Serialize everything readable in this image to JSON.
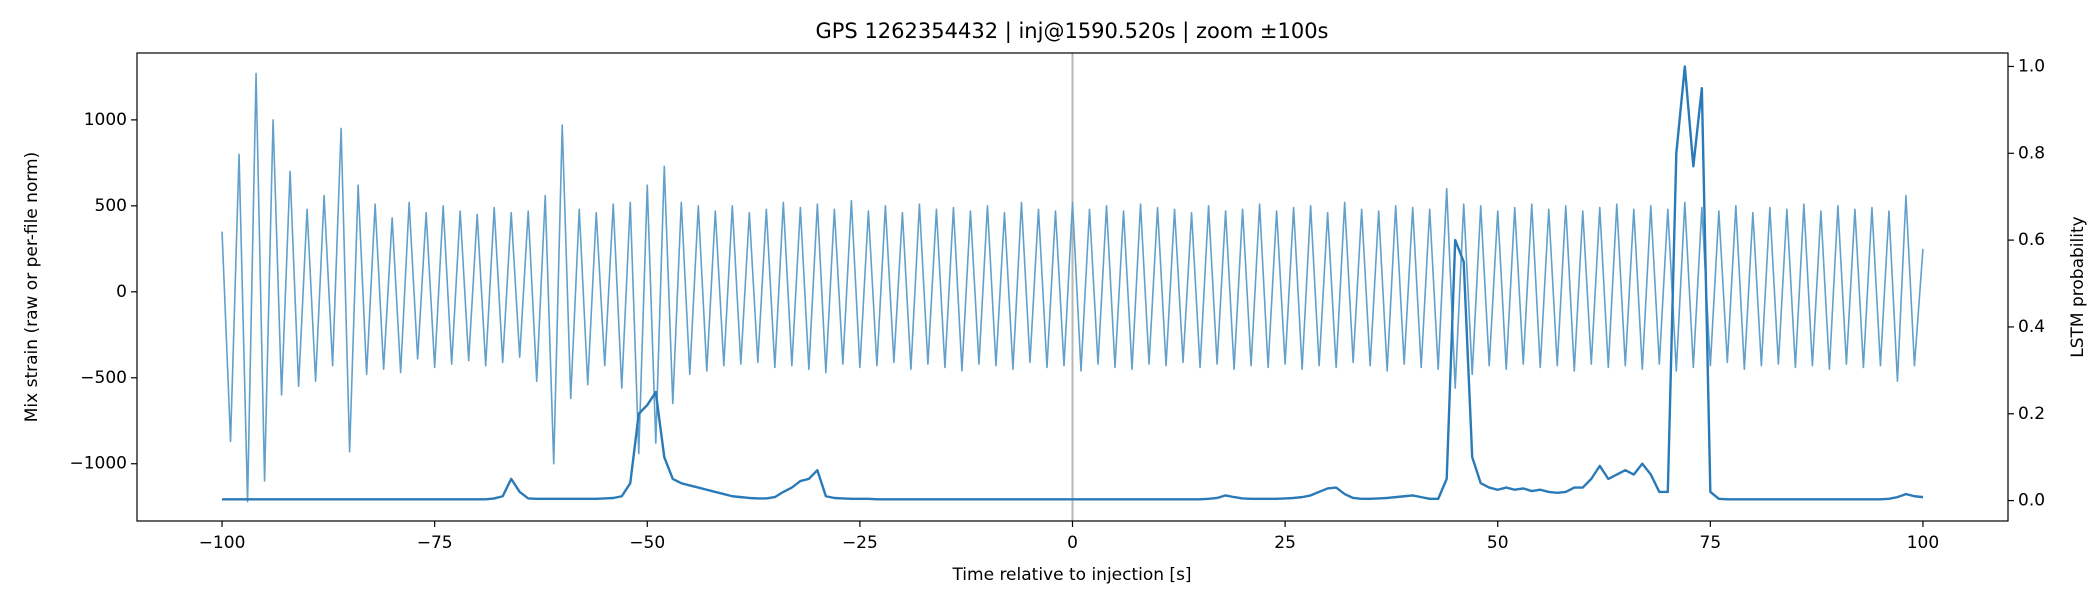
{
  "chart_data": {
    "type": "line",
    "title": "GPS 1262354432 | inj@1590.520s | zoom ±100s",
    "xlabel": "Time relative to injection [s]",
    "ylabel": "Mix strain (raw or per-file norm)",
    "y2label": "LSTM probability",
    "x": [
      -100,
      -99,
      -98,
      -97,
      -96,
      -95,
      -94,
      -93,
      -92,
      -91,
      -90,
      -89,
      -88,
      -87,
      -86,
      -85,
      -84,
      -83,
      -82,
      -81,
      -80,
      -79,
      -78,
      -77,
      -76,
      -75,
      -74,
      -73,
      -72,
      -71,
      -70,
      -69,
      -68,
      -67,
      -66,
      -65,
      -64,
      -63,
      -62,
      -61,
      -60,
      -59,
      -58,
      -57,
      -56,
      -55,
      -54,
      -53,
      -52,
      -51,
      -50,
      -49,
      -48,
      -47,
      -46,
      -45,
      -44,
      -43,
      -42,
      -41,
      -40,
      -39,
      -38,
      -37,
      -36,
      -35,
      -34,
      -33,
      -32,
      -31,
      -30,
      -29,
      -28,
      -27,
      -26,
      -25,
      -24,
      -23,
      -22,
      -21,
      -20,
      -19,
      -18,
      -17,
      -16,
      -15,
      -14,
      -13,
      -12,
      -11,
      -10,
      -9,
      -8,
      -7,
      -6,
      -5,
      -4,
      -3,
      -2,
      -1,
      0,
      1,
      2,
      3,
      4,
      5,
      6,
      7,
      8,
      9,
      10,
      11,
      12,
      13,
      14,
      15,
      16,
      17,
      18,
      19,
      20,
      21,
      22,
      23,
      24,
      25,
      26,
      27,
      28,
      29,
      30,
      31,
      32,
      33,
      34,
      35,
      36,
      37,
      38,
      39,
      40,
      41,
      42,
      43,
      44,
      45,
      46,
      47,
      48,
      49,
      50,
      51,
      52,
      53,
      54,
      55,
      56,
      57,
      58,
      59,
      60,
      61,
      62,
      63,
      64,
      65,
      66,
      67,
      68,
      69,
      70,
      71,
      72,
      73,
      74,
      75,
      76,
      77,
      78,
      79,
      80,
      81,
      82,
      83,
      84,
      85,
      86,
      87,
      88,
      89,
      90,
      91,
      92,
      93,
      94,
      95,
      96,
      97,
      98,
      99,
      100
    ],
    "series": [
      {
        "name": "Mix strain",
        "color": "#62a0cb",
        "axis": "y",
        "values": [
          350,
          -870,
          800,
          -1220,
          1270,
          -1100,
          1000,
          -600,
          700,
          -550,
          480,
          -520,
          560,
          -430,
          950,
          -930,
          620,
          -480,
          510,
          -450,
          430,
          -470,
          520,
          -390,
          460,
          -440,
          500,
          -420,
          470,
          -400,
          450,
          -430,
          490,
          -410,
          460,
          -380,
          470,
          -520,
          560,
          -1000,
          970,
          -620,
          480,
          -540,
          460,
          -430,
          510,
          -560,
          520,
          -940,
          620,
          -880,
          730,
          -650,
          520,
          -480,
          500,
          -460,
          470,
          -430,
          500,
          -420,
          460,
          -410,
          480,
          -440,
          520,
          -430,
          490,
          -450,
          510,
          -470,
          480,
          -420,
          530,
          -440,
          470,
          -430,
          500,
          -410,
          460,
          -450,
          510,
          -420,
          480,
          -440,
          490,
          -460,
          470,
          -420,
          500,
          -430,
          460,
          -450,
          520,
          -410,
          480,
          -440,
          470,
          -430,
          520,
          -460,
          480,
          -420,
          500,
          -440,
          470,
          -450,
          510,
          -420,
          490,
          -430,
          480,
          -410,
          460,
          -440,
          500,
          -420,
          470,
          -450,
          480,
          -430,
          510,
          -440,
          470,
          -420,
          490,
          -450,
          500,
          -430,
          460,
          -440,
          520,
          -410,
          480,
          -430,
          470,
          -460,
          500,
          -420,
          490,
          -440,
          480,
          -450,
          600,
          -560,
          510,
          -480,
          500,
          -430,
          470,
          -450,
          490,
          -420,
          510,
          -440,
          480,
          -430,
          500,
          -460,
          470,
          -420,
          490,
          -440,
          510,
          -430,
          480,
          -450,
          500,
          -420,
          480,
          -460,
          520,
          -440,
          490,
          -430,
          470,
          -410,
          500,
          -450,
          460,
          -430,
          490,
          -420,
          480,
          -440,
          510,
          -430,
          470,
          -450,
          500,
          -420,
          480,
          -440,
          490,
          -430,
          470,
          -520,
          560,
          -430,
          250
        ]
      },
      {
        "name": "LSTM probability",
        "color": "#2a7ab8",
        "axis": "y2",
        "values": [
          0.003,
          0.003,
          0.003,
          0.003,
          0.003,
          0.003,
          0.003,
          0.003,
          0.003,
          0.003,
          0.003,
          0.003,
          0.003,
          0.003,
          0.003,
          0.003,
          0.003,
          0.003,
          0.003,
          0.003,
          0.003,
          0.003,
          0.003,
          0.003,
          0.003,
          0.003,
          0.003,
          0.003,
          0.003,
          0.003,
          0.003,
          0.003,
          0.005,
          0.01,
          0.05,
          0.02,
          0.005,
          0.004,
          0.004,
          0.004,
          0.004,
          0.004,
          0.004,
          0.004,
          0.004,
          0.005,
          0.006,
          0.01,
          0.04,
          0.2,
          0.22,
          0.25,
          0.1,
          0.05,
          0.04,
          0.035,
          0.03,
          0.025,
          0.02,
          0.015,
          0.01,
          0.008,
          0.006,
          0.005,
          0.005,
          0.008,
          0.02,
          0.03,
          0.045,
          0.05,
          0.07,
          0.01,
          0.006,
          0.005,
          0.004,
          0.004,
          0.004,
          0.003,
          0.003,
          0.003,
          0.003,
          0.003,
          0.003,
          0.003,
          0.003,
          0.003,
          0.003,
          0.003,
          0.003,
          0.003,
          0.003,
          0.003,
          0.003,
          0.003,
          0.003,
          0.003,
          0.003,
          0.003,
          0.003,
          0.003,
          0.003,
          0.003,
          0.003,
          0.003,
          0.003,
          0.003,
          0.003,
          0.003,
          0.003,
          0.003,
          0.003,
          0.003,
          0.003,
          0.003,
          0.003,
          0.003,
          0.004,
          0.006,
          0.012,
          0.008,
          0.005,
          0.004,
          0.004,
          0.004,
          0.004,
          0.005,
          0.006,
          0.008,
          0.012,
          0.02,
          0.028,
          0.03,
          0.015,
          0.006,
          0.004,
          0.004,
          0.005,
          0.006,
          0.008,
          0.01,
          0.012,
          0.008,
          0.004,
          0.004,
          0.05,
          0.6,
          0.55,
          0.1,
          0.04,
          0.03,
          0.025,
          0.03,
          0.025,
          0.028,
          0.022,
          0.025,
          0.02,
          0.018,
          0.02,
          0.03,
          0.03,
          0.05,
          0.08,
          0.05,
          0.06,
          0.07,
          0.06,
          0.085,
          0.06,
          0.02,
          0.02,
          0.8,
          1.0,
          0.77,
          0.95,
          0.02,
          0.004,
          0.003,
          0.003,
          0.003,
          0.003,
          0.003,
          0.003,
          0.003,
          0.003,
          0.003,
          0.003,
          0.003,
          0.003,
          0.003,
          0.003,
          0.003,
          0.003,
          0.003,
          0.003,
          0.003,
          0.004,
          0.008,
          0.015,
          0.01,
          0.008
        ]
      }
    ],
    "vline": 0,
    "xlim": [
      -110,
      110
    ],
    "xticks": [
      {
        "value": -100,
        "label": "−100"
      },
      {
        "value": -75,
        "label": "−75"
      },
      {
        "value": -50,
        "label": "−50"
      },
      {
        "value": -25,
        "label": "−25"
      },
      0,
      25,
      50,
      75,
      100
    ],
    "ylim": [
      -1333,
      1389
    ],
    "yticks": [
      {
        "value": -1000,
        "label": "−1000"
      },
      {
        "value": -500,
        "label": "−500"
      },
      0,
      500,
      1000
    ],
    "y2lim": [
      -0.047,
      1.031
    ],
    "y2ticks": [
      {
        "value": 0,
        "label": "0.0"
      },
      0.2,
      0.4,
      0.6,
      0.8,
      {
        "value": 1,
        "label": "1.0"
      }
    ],
    "grid": false
  }
}
